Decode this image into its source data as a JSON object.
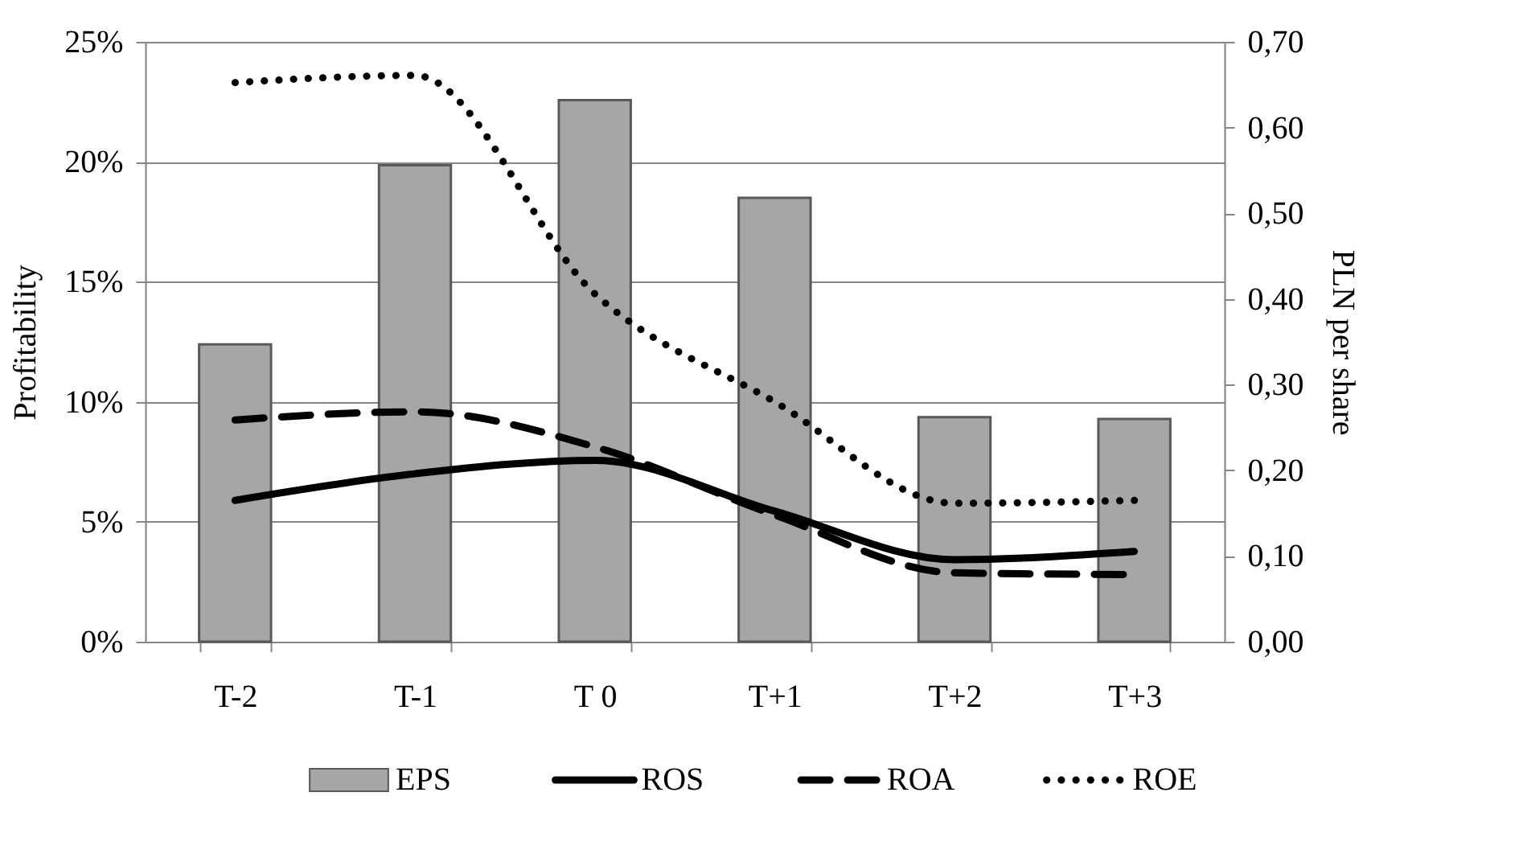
{
  "chart_data": {
    "type": "bar",
    "categories": [
      "T-2",
      "T-1",
      "T 0",
      "T+1",
      "T+2",
      "T+3"
    ],
    "ylabel": "Profitability",
    "y2label": "PLN per share",
    "series": [
      {
        "name": "EPS",
        "axis": "y2",
        "color": "#a6a6a6",
        "values": [
          0.347,
          0.556,
          0.632,
          0.518,
          0.262,
          0.26
        ]
      },
      {
        "name": "ROS",
        "type": "line",
        "color": "#000000",
        "line_style": "solid",
        "values": [
          5.89,
          7.0,
          7.56,
          5.44,
          3.42,
          3.76
        ]
      },
      {
        "name": "ROA",
        "type": "line",
        "color": "#000000",
        "line_style": "dashed",
        "values": [
          9.24,
          9.58,
          8.12,
          5.28,
          2.87,
          2.8
        ]
      },
      {
        "name": "ROE",
        "type": "line",
        "color": "#000000",
        "line_style": "dotted",
        "values": [
          23.3,
          23.6,
          14.5,
          10.0,
          5.77,
          5.89
        ]
      }
    ],
    "ylim": [
      0,
      25
    ],
    "yticks": [
      {
        "value": 0,
        "label": "0%"
      },
      {
        "value": 5,
        "label": "5%"
      },
      {
        "value": 10,
        "label": "10%"
      },
      {
        "value": 15,
        "label": "15%"
      },
      {
        "value": 20,
        "label": "20%"
      },
      {
        "value": 25,
        "label": "25%"
      }
    ],
    "y2lim": [
      0,
      0.7
    ],
    "y2ticks": [
      {
        "value": 0,
        "label": "0,00"
      },
      {
        "value": 0.1,
        "label": "0,10"
      },
      {
        "value": 0.2,
        "label": "0,20"
      },
      {
        "value": 0.3,
        "label": "0,30"
      },
      {
        "value": 0.4,
        "label": "0,40"
      },
      {
        "value": 0.5,
        "label": "0,50"
      },
      {
        "value": 0.6,
        "label": "0,60"
      },
      {
        "value": 0.7,
        "label": "0,70"
      }
    ],
    "grid": "y",
    "legend": "bottom"
  }
}
